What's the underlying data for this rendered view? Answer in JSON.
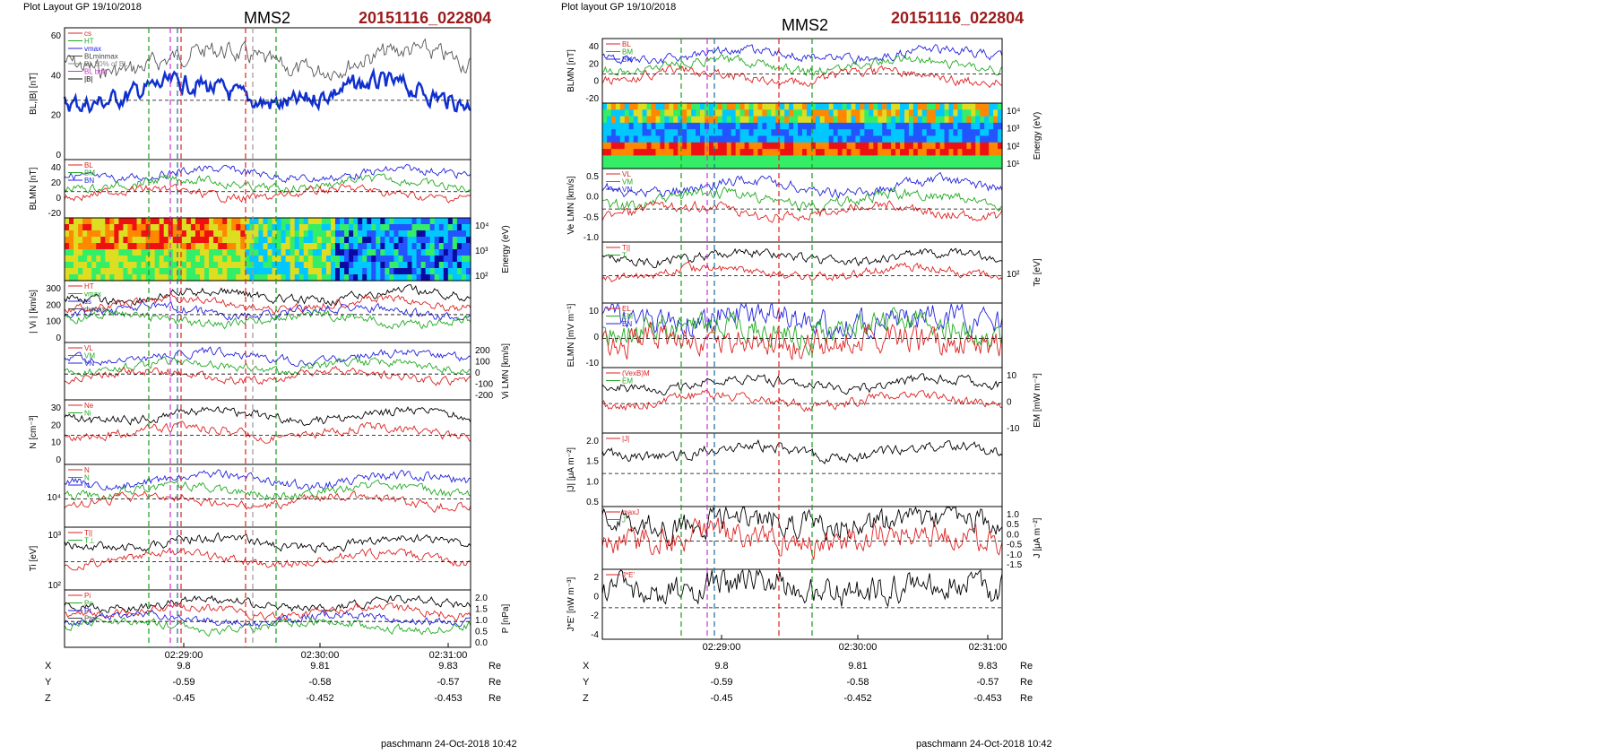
{
  "page": {
    "header_left": "Plot Layout GP 19/10/2018",
    "header_right": "Plot layout GP 19/10/2018",
    "spacecraft": "MMS2",
    "event_id": "20151116_022804",
    "footer": "paschmann 24-Oct-2018 10:42"
  },
  "time_axis": {
    "ticks": [
      "02:29:00",
      "02:30:00",
      "02:31:00"
    ],
    "ephemeris": [
      {
        "label": "X",
        "values": [
          "9.8",
          "9.81",
          "9.83"
        ],
        "unit": "Re"
      },
      {
        "label": "Y",
        "values": [
          "-0.59",
          "-0.58",
          "-0.57"
        ],
        "unit": "Re"
      },
      {
        "label": "Z",
        "values": [
          "-0.45",
          "-0.452",
          "-0.453"
        ],
        "unit": "Re"
      }
    ]
  },
  "chart_data": [
    {
      "type": "line",
      "figure": "left",
      "panels": [
        {
          "ylabel": "BL,|B| [nT]",
          "ylim": [
            -10,
            65
          ],
          "ticks": [
            "60",
            "40",
            "20",
            "0"
          ],
          "legend": [
            "cs",
            "HT",
            "vmax",
            "BLminmax",
            "BL 50% of BL",
            "BL brst",
            "|B|"
          ]
        },
        {
          "ylabel": "BLMN [nT]",
          "ylim": [
            -30,
            55
          ],
          "ticks": [
            "40",
            "20",
            "0",
            "-20"
          ],
          "legend": [
            "BL",
            "BM",
            "BN"
          ]
        },
        {
          "ylabel": "Energy (eV)",
          "type": "heatmap",
          "ticks": [
            "10⁴",
            "10³",
            "10²"
          ]
        },
        {
          "ylabel": "| Vi | [km/s]",
          "ylim": [
            0,
            300
          ],
          "ticks": [
            "300",
            "200",
            "100",
            "0"
          ],
          "legend": [
            "HT",
            "vmax",
            "cs",
            "dvmax"
          ]
        },
        {
          "ylabel": "Vi LMN [km/s]",
          "ylim": [
            -250,
            250
          ],
          "ticks": [
            "200",
            "100",
            "0",
            "-100",
            "-200"
          ],
          "legend": [
            "VL",
            "VM",
            "VN"
          ]
        },
        {
          "ylabel": "N [cm⁻³]",
          "ylim": [
            0,
            32
          ],
          "ticks": [
            "30",
            "20",
            "10",
            "0"
          ],
          "legend": [
            "Ne",
            "Ni"
          ]
        },
        {
          "ylabel": "",
          "ticks": [
            "10⁴"
          ],
          "legend": [
            "N",
            "N",
            "N"
          ]
        },
        {
          "ylabel": "Ti [eV]",
          "ticks": [
            "10³",
            "10²"
          ],
          "legend": [
            "T||",
            "T⊥"
          ]
        },
        {
          "ylabel": "P [nPa]",
          "ylim": [
            0,
            2.2
          ],
          "ticks": [
            "2.0",
            "1.5",
            "1.0",
            "0.5",
            "0.0"
          ],
          "legend": [
            "Pi",
            "Pe",
            "Pt",
            "Ptot"
          ]
        }
      ]
    },
    {
      "type": "line",
      "figure": "right",
      "panels": [
        {
          "ylabel": "BLMN [nT]",
          "ylim": [
            -30,
            55
          ],
          "ticks": [
            "40",
            "20",
            "0",
            "-20"
          ],
          "legend": [
            "BL",
            "BM",
            "BN"
          ]
        },
        {
          "ylabel": "Energy (eV)",
          "type": "heatmap",
          "ticks": [
            "10⁴",
            "10³",
            "10²",
            "10¹"
          ]
        },
        {
          "ylabel": "Ve LMN [km/s]",
          "ylim": [
            -1.3,
            0.8
          ],
          "ticks": [
            "0.5",
            "0.0",
            "-0.5",
            "-1.0"
          ],
          "scale": "x10³",
          "legend": [
            "VL",
            "VM",
            "VN"
          ]
        },
        {
          "ylabel": "Te [eV]",
          "ticks": [
            "10²"
          ],
          "legend": [
            "T||",
            "T"
          ]
        },
        {
          "ylabel": "ELMN [mV m⁻¹]",
          "ylim": [
            -17,
            17
          ],
          "ticks": [
            "10",
            "0",
            "-10"
          ],
          "legend": [
            "EL",
            "EM",
            "EN"
          ]
        },
        {
          "ylabel": "EM [mW m⁻²]",
          "ylim": [
            -14,
            14
          ],
          "ticks": [
            "10",
            "0",
            "-10"
          ],
          "legend": [
            "(VexB)M",
            "EM"
          ]
        },
        {
          "ylabel": "|J| [μA m⁻²]",
          "ylim": [
            0,
            2.0
          ],
          "ticks": [
            "2.0",
            "1.5",
            "1.0",
            "0.5"
          ],
          "legend": [
            "|J|"
          ]
        },
        {
          "ylabel": "J [μA m⁻²]",
          "ylim": [
            -1.7,
            1.1
          ],
          "ticks": [
            "1.0",
            "0.5",
            "0.0",
            "-0.5",
            "-1.0",
            "-1.5"
          ],
          "legend": [
            "maxJ",
            "J"
          ]
        },
        {
          "ylabel": "J*E' [nW m⁻³]",
          "ylim": [
            -4.5,
            3.5
          ],
          "ticks": [
            "2",
            "0",
            "-2",
            "-4"
          ],
          "legend": [
            "J*E'"
          ]
        }
      ]
    }
  ]
}
